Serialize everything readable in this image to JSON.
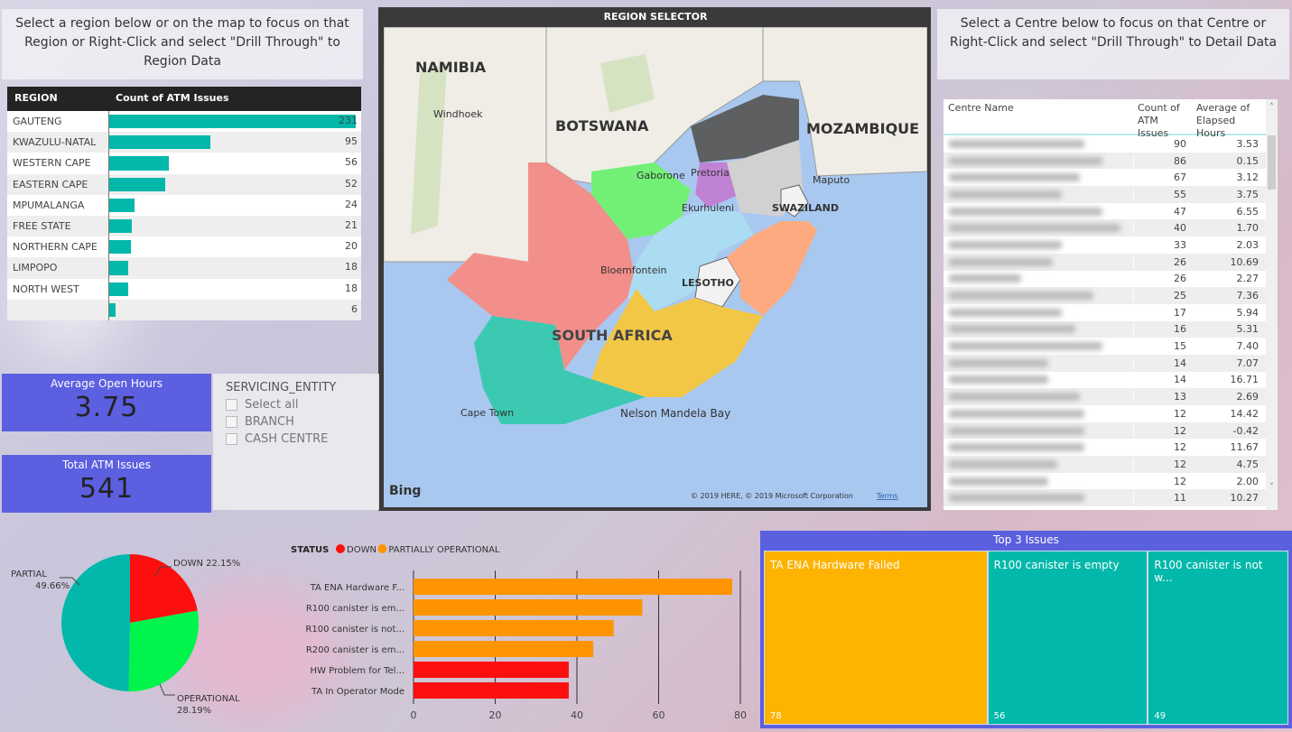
{
  "region_instructions": "Select a region below or on the map to focus on that Region or Right-Click and select \"Drill Through\" to Region Data",
  "centre_instructions": "Select a Centre below to focus on that Centre or Right-Click and select \"Drill Through\" to Detail Data",
  "region_table": {
    "headers": [
      "REGION",
      "Count of ATM Issues"
    ],
    "rows": [
      {
        "name": "GAUTENG",
        "value": 231
      },
      {
        "name": "KWAZULU-NATAL",
        "value": 95
      },
      {
        "name": "WESTERN CAPE",
        "value": 56
      },
      {
        "name": "EASTERN CAPE",
        "value": 52
      },
      {
        "name": "MPUMALANGA",
        "value": 24
      },
      {
        "name": "FREE STATE",
        "value": 21
      },
      {
        "name": "NORTHERN CAPE",
        "value": 20
      },
      {
        "name": "LIMPOPO",
        "value": 18
      },
      {
        "name": "NORTH WEST",
        "value": 18
      },
      {
        "name": "",
        "value": 6
      }
    ],
    "bar_color": "#01b8aa"
  },
  "map": {
    "title": "REGION SELECTOR",
    "labels": {
      "namibia": "NAMIBIA",
      "windhoek": "Windhoek",
      "botswana": "BOTSWANA",
      "gaborone": "Gaborone",
      "pretoria": "Pretoria",
      "mozambique": "MOZAMBIQUE",
      "maputo": "Maputo",
      "ekurhuleni": "Ekurhuleni",
      "swaziland": "SWAZILAND",
      "bloemfontein": "Bloemfontein",
      "lesotho": "LESOTHO",
      "south_africa": "SOUTH AFRICA",
      "cape_town": "Cape Town",
      "nelson_mandela_bay": "Nelson Mandela Bay"
    },
    "bing": "Bing",
    "copyright": "© 2019 HERE, © 2019 Microsoft Corporation",
    "terms": "Terms"
  },
  "kpis": {
    "avg_open_hours": {
      "label": "Average Open Hours",
      "value": "3.75"
    },
    "total_issues": {
      "label": "Total ATM Issues",
      "value": "541"
    }
  },
  "slicer": {
    "title": "SERVICING_ENTITY",
    "options": [
      "Select all",
      "BRANCH",
      "CASH CENTRE"
    ]
  },
  "centre_table": {
    "headers": [
      "Centre Name",
      "Count of ATM Issues",
      "Average of Elapsed Hours"
    ],
    "rows": [
      [
        90,
        "3.53"
      ],
      [
        86,
        "0.15"
      ],
      [
        67,
        "3.12"
      ],
      [
        55,
        "3.75"
      ],
      [
        47,
        "6.55"
      ],
      [
        40,
        "1.70"
      ],
      [
        33,
        "2.03"
      ],
      [
        26,
        "10.69"
      ],
      [
        26,
        "2.27"
      ],
      [
        25,
        "7.36"
      ],
      [
        17,
        "5.94"
      ],
      [
        16,
        "5.31"
      ],
      [
        15,
        "7.40"
      ],
      [
        14,
        "7.07"
      ],
      [
        14,
        "16.71"
      ],
      [
        13,
        "2.69"
      ],
      [
        12,
        "14.42"
      ],
      [
        12,
        "-0.42"
      ],
      [
        12,
        "11.67"
      ],
      [
        12,
        "4.75"
      ],
      [
        12,
        "2.00"
      ],
      [
        11,
        "10.27"
      ]
    ]
  },
  "chart_data": [
    {
      "type": "pie",
      "slices": [
        {
          "label": "DOWN",
          "value": 22.15,
          "color": "#fd0f0f"
        },
        {
          "label": "OPERATIONAL",
          "value": 28.19,
          "color": "#00f44c"
        },
        {
          "label": "PARTIAL",
          "value": 49.66,
          "color": "#01b8aa"
        }
      ],
      "data_labels": [
        "DOWN 22.15%",
        "OPERATIONAL 28.19%",
        "PARTIAL 49.66%"
      ]
    },
    {
      "type": "bar",
      "orientation": "horizontal",
      "legend_title": "STATUS",
      "legend": [
        {
          "name": "DOWN",
          "color": "#fd0f0f"
        },
        {
          "name": "PARTIALLY OPERATIONAL",
          "color": "#fe9400"
        }
      ],
      "categories": [
        "TA ENA Hardware F...",
        "R100 canister is em...",
        "R100 canister is not...",
        "R200 canister is em...",
        "HW Problem for Tel...",
        "TA In Operator Mode"
      ],
      "values": [
        78,
        56,
        49,
        44,
        38,
        38
      ],
      "status": [
        "PARTIALLY OPERATIONAL",
        "PARTIALLY OPERATIONAL",
        "PARTIALLY OPERATIONAL",
        "PARTIALLY OPERATIONAL",
        "DOWN",
        "DOWN"
      ],
      "xlim": [
        0,
        80
      ],
      "xticks": [
        0,
        20,
        40,
        60,
        80
      ],
      "grid": true
    },
    {
      "type": "treemap",
      "title": "Top 3 Issues",
      "items": [
        {
          "label": "TA ENA Hardware Failed",
          "value": 78,
          "color": "#fdb300"
        },
        {
          "label": "R100 canister is empty",
          "value": 56,
          "color": "#01b8aa"
        },
        {
          "label": "R100 canister is not w...",
          "value": 49,
          "color": "#01b8aa"
        }
      ]
    }
  ]
}
